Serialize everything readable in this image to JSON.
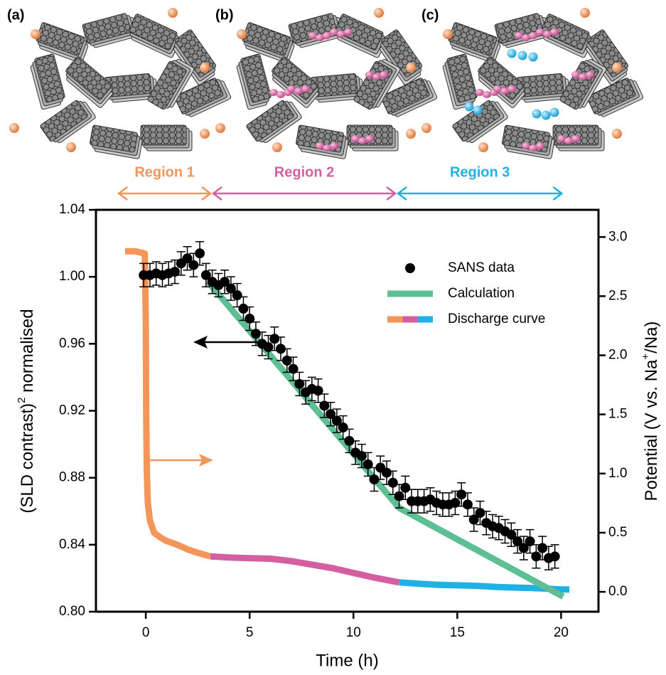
{
  "panels": [
    {
      "label": "(a)"
    },
    {
      "label": "(b)"
    },
    {
      "label": "(c)"
    }
  ],
  "chart_data": {
    "type": "combo",
    "x_label": "Time (h)",
    "y_label": {
      "text": "(SLD contrast)",
      "sup": "2",
      "tail": " normalised"
    },
    "y2_label": {
      "text": "Potential (V vs. Na",
      "sup": "+",
      "tail": "/Na)"
    },
    "xlim": [
      -2.4,
      21.8
    ],
    "xticks": [
      0,
      5,
      10,
      15,
      20
    ],
    "ylim": [
      0.8,
      1.04
    ],
    "yticks": [
      {
        "value": 0.8,
        "label": "0.80"
      },
      0.84,
      0.88,
      0.92,
      0.96,
      {
        "value": 1,
        "label": "1.00"
      },
      1.04
    ],
    "y2lim": [
      -0.168,
      3.23
    ],
    "y2ticks": [
      {
        "value": 0,
        "label": "0.0"
      },
      0.5,
      {
        "value": 1,
        "label": "1.0"
      },
      1.5,
      {
        "value": 2,
        "label": "2.0"
      },
      2.5,
      {
        "value": 3,
        "label": "3.0"
      }
    ],
    "legend": "upper right",
    "regions": [
      {
        "label": "Region 1",
        "color": "#f4955a",
        "x": [
          -1.37,
          3.18
        ]
      },
      {
        "label": "Region 2",
        "color": "#d45fa0",
        "x": [
          3.18,
          12.08
        ]
      },
      {
        "label": "Region 3",
        "color": "#1fb0e4",
        "x": [
          12.08,
          20.1
        ]
      }
    ],
    "series": [
      {
        "name": "SANS data",
        "type": "scatter",
        "color": "#000000",
        "x": [
          -0.1,
          0.2,
          0.5,
          0.8,
          1.1,
          1.4,
          1.7,
          2.0,
          2.3,
          2.6,
          2.9,
          3.2,
          3.5,
          3.8,
          4.1,
          4.4,
          4.7,
          5.0,
          5.3,
          5.6,
          5.9,
          6.2,
          6.5,
          6.8,
          7.1,
          7.4,
          7.7,
          8.0,
          8.3,
          8.6,
          8.9,
          9.2,
          9.5,
          9.8,
          10.1,
          10.4,
          10.7,
          11.0,
          11.3,
          11.6,
          11.9,
          12.2,
          12.5,
          12.8,
          13.1,
          13.4,
          13.7,
          14.0,
          14.3,
          14.6,
          14.9,
          15.2,
          15.5,
          15.8,
          16.1,
          16.4,
          16.7,
          17.0,
          17.3,
          17.6,
          17.9,
          18.2,
          18.5,
          18.8,
          19.1,
          19.4,
          19.7
        ],
        "values": [
          1.001,
          1.001,
          1.002,
          1.001,
          1.002,
          1.003,
          1.008,
          1.011,
          1.007,
          1.014,
          1.001,
          0.997,
          0.995,
          0.997,
          0.993,
          0.989,
          0.981,
          0.975,
          0.966,
          0.96,
          0.958,
          0.963,
          0.957,
          0.95,
          0.945,
          0.936,
          0.931,
          0.933,
          0.932,
          0.923,
          0.918,
          0.914,
          0.91,
          0.902,
          0.895,
          0.893,
          0.888,
          0.879,
          0.886,
          0.883,
          0.877,
          0.869,
          0.874,
          0.866,
          0.866,
          0.866,
          0.867,
          0.865,
          0.864,
          0.864,
          0.865,
          0.87,
          0.864,
          0.855,
          0.859,
          0.853,
          0.851,
          0.85,
          0.848,
          0.846,
          0.842,
          0.838,
          0.842,
          0.833,
          0.838,
          0.832,
          0.833
        ],
        "errors": [
          0.007,
          0.007,
          0.007,
          0.007,
          0.007,
          0.007,
          0.007,
          0.007,
          0.007,
          0.007,
          0.007,
          0.007,
          0.007,
          0.007,
          0.007,
          0.007,
          0.007,
          0.007,
          0.007,
          0.007,
          0.007,
          0.007,
          0.007,
          0.007,
          0.007,
          0.007,
          0.007,
          0.007,
          0.007,
          0.007,
          0.007,
          0.007,
          0.007,
          0.007,
          0.007,
          0.007,
          0.007,
          0.007,
          0.007,
          0.007,
          0.007,
          0.007,
          0.007,
          0.007,
          0.007,
          0.007,
          0.007,
          0.007,
          0.007,
          0.007,
          0.007,
          0.007,
          0.007,
          0.007,
          0.007,
          0.007,
          0.007,
          0.007,
          0.007,
          0.007,
          0.007,
          0.007,
          0.007,
          0.007,
          0.007,
          0.007,
          0.007
        ]
      },
      {
        "name": "Calculation",
        "type": "line",
        "color": "#5dbf93",
        "x": [
          3.0,
          12.2,
          20.1
        ],
        "values": [
          0.997,
          0.862,
          0.809
        ]
      },
      {
        "name": "Discharge curve",
        "type": "segmented",
        "axis": "y2",
        "segments": [
          {
            "color": "#f4955a",
            "x": [
              -1.0,
              -0.5,
              -0.05,
              0.0,
              0.02,
              0.05,
              0.1,
              0.2,
              0.4,
              0.7,
              1.0,
              1.5,
              2.0,
              2.5,
              3.1
            ],
            "values": [
              2.88,
              2.88,
              2.86,
              2.3,
              1.5,
              1.0,
              0.75,
              0.6,
              0.5,
              0.46,
              0.43,
              0.4,
              0.36,
              0.33,
              0.3
            ]
          },
          {
            "color": "#d45fa0",
            "x": [
              3.1,
              4,
              5,
              6,
              7,
              8,
              9,
              10,
              11,
              12.2
            ],
            "values": [
              0.3,
              0.29,
              0.285,
              0.28,
              0.26,
              0.23,
              0.2,
              0.16,
              0.12,
              0.08
            ]
          },
          {
            "color": "#1fb0e4",
            "x": [
              12.2,
              13,
              14,
              15,
              16,
              17,
              18,
              19,
              20,
              20.4
            ],
            "values": [
              0.08,
              0.07,
              0.06,
              0.055,
              0.05,
              0.04,
              0.035,
              0.03,
              0.02,
              0.02
            ]
          }
        ]
      }
    ]
  }
}
